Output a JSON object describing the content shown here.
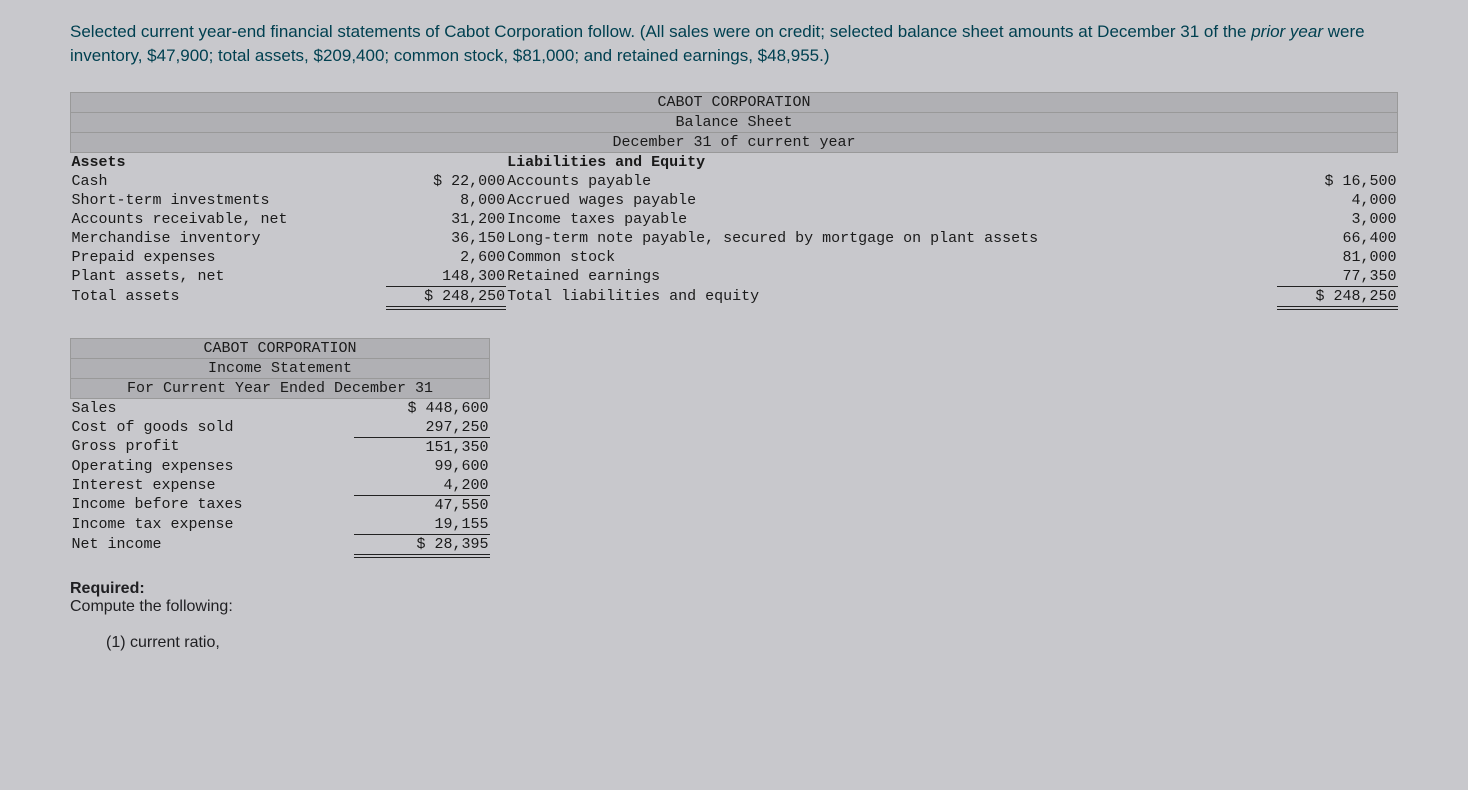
{
  "intro": {
    "text_a": "Selected current year-end financial statements of Cabot Corporation follow. (All sales were on credit; selected balance sheet amounts at December 31 of the ",
    "text_em": "prior year",
    "text_b": " were inventory, $47,900; total assets, $209,400; common stock, $81,000; and retained earnings, $48,955.)"
  },
  "balance_sheet": {
    "title1": "CABOT CORPORATION",
    "title2": "Balance Sheet",
    "title3": "December 31 of current year",
    "left_header": "Assets",
    "right_header": "Liabilities and Equity",
    "rows": [
      {
        "l_label": "Cash",
        "l_val": "$ 22,000",
        "r_label": "Accounts payable",
        "r_val": "$ 16,500"
      },
      {
        "l_label": "Short-term investments",
        "l_val": "8,000",
        "r_label": "Accrued wages payable",
        "r_val": "4,000"
      },
      {
        "l_label": "Accounts receivable, net",
        "l_val": "31,200",
        "r_label": "Income taxes payable",
        "r_val": "3,000"
      },
      {
        "l_label": "Merchandise inventory",
        "l_val": "36,150",
        "r_label": "Long-term note payable, secured by mortgage on plant assets",
        "r_val": "66,400"
      },
      {
        "l_label": "Prepaid expenses",
        "l_val": "2,600",
        "r_label": "Common stock",
        "r_val": "81,000"
      },
      {
        "l_label": "Plant assets, net",
        "l_val": "148,300",
        "r_label": "Retained earnings",
        "r_val": "77,350"
      }
    ],
    "total_row": {
      "l_label": "Total assets",
      "l_val": "$ 248,250",
      "r_label": "Total liabilities and equity",
      "r_val": "$ 248,250"
    }
  },
  "income_statement": {
    "title1": "CABOT CORPORATION",
    "title2": "Income Statement",
    "title3": "For Current Year Ended December 31",
    "rows": [
      {
        "label": "Sales",
        "val": "$ 448,600",
        "top_border": false
      },
      {
        "label": "Cost of goods sold",
        "val": "297,250",
        "top_border": false
      },
      {
        "label": "Gross profit",
        "val": "151,350",
        "top_border": true
      },
      {
        "label": "Operating expenses",
        "val": "99,600",
        "top_border": false
      },
      {
        "label": "Interest expense",
        "val": "4,200",
        "top_border": false
      },
      {
        "label": "Income before taxes",
        "val": "47,550",
        "top_border": true
      },
      {
        "label": "Income tax expense",
        "val": "19,155",
        "top_border": false
      }
    ],
    "net_row": {
      "label": "Net income",
      "val": "$ 28,395"
    }
  },
  "required": {
    "header": "Required:",
    "sub": "Compute the following:",
    "item1": "(1) current ratio,"
  },
  "colors": {
    "page_bg": "#c8c8cc",
    "header_bg": "#b0b0b4",
    "intro_text": "#004050",
    "body_text": "#1a1a1a"
  }
}
